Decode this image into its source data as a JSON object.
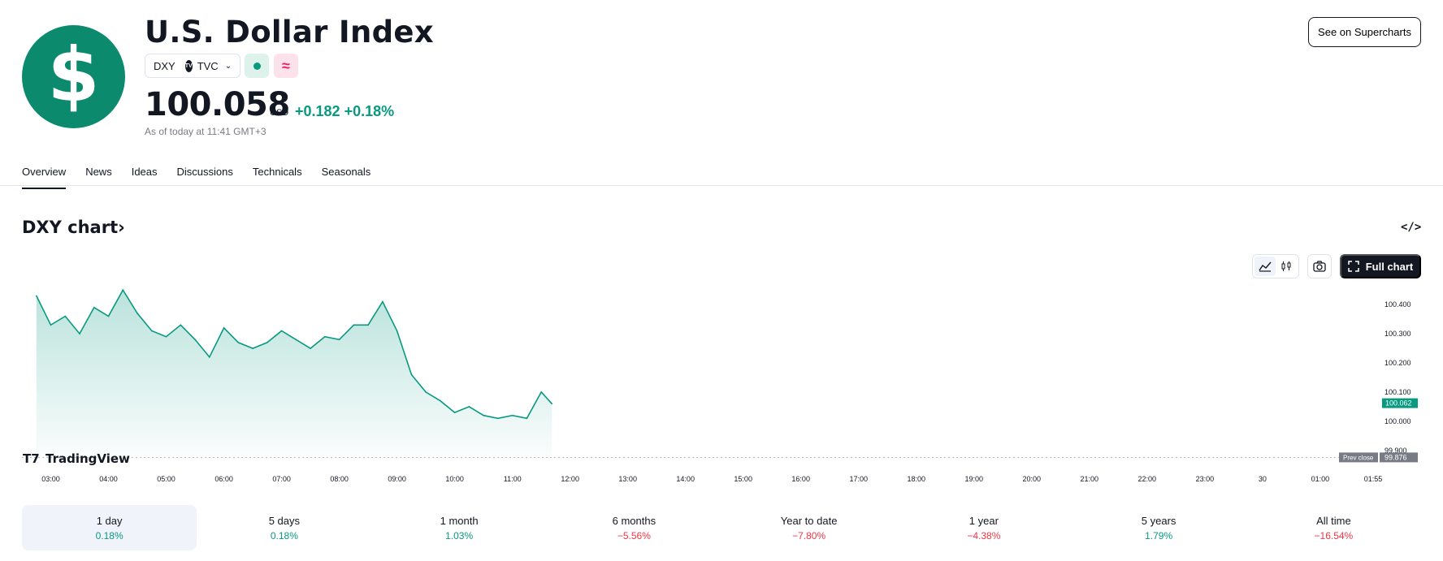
{
  "header": {
    "logo_symbol": "$",
    "title": "U.S. Dollar Index",
    "ticker": "DXY",
    "exchange": "TVC",
    "exchange_badge": "TV",
    "market_status_icon": "green-dot-icon",
    "data_delay_icon": "wave-icon",
    "price": "100.058",
    "currency": "USD",
    "change": "+0.182",
    "change_pct": "+0.18%",
    "as_of": "As of today at 11:41 GMT+3",
    "supercharts_label": "See on Supercharts"
  },
  "tabs": [
    "Overview",
    "News",
    "Ideas",
    "Discussions",
    "Technicals",
    "Seasonals"
  ],
  "active_tab": "Overview",
  "chart_section": {
    "title": "DXY chart",
    "title_arrow": "›",
    "embed_label": "</>",
    "full_chart_label": "Full chart",
    "brand": "TradingView"
  },
  "periods": [
    {
      "label": "1 day",
      "value": "0.18%",
      "dir": "pos"
    },
    {
      "label": "5 days",
      "value": "0.18%",
      "dir": "pos"
    },
    {
      "label": "1 month",
      "value": "1.03%",
      "dir": "pos"
    },
    {
      "label": "6 months",
      "value": "−5.56%",
      "dir": "neg"
    },
    {
      "label": "Year to date",
      "value": "−7.80%",
      "dir": "neg"
    },
    {
      "label": "1 year",
      "value": "−4.38%",
      "dir": "neg"
    },
    {
      "label": "5 years",
      "value": "1.79%",
      "dir": "pos"
    },
    {
      "label": "All time",
      "value": "−16.54%",
      "dir": "neg"
    }
  ],
  "colors": {
    "accent": "#089981",
    "negative": "#f23645",
    "logo_bg": "#0b8a6e",
    "text": "#131722"
  },
  "chart_data": {
    "type": "area",
    "x_ticks": [
      "03:00",
      "04:00",
      "05:00",
      "06:00",
      "07:00",
      "08:00",
      "09:00",
      "10:00",
      "11:00",
      "12:00",
      "13:00",
      "14:00",
      "15:00",
      "16:00",
      "17:00",
      "18:00",
      "19:00",
      "20:00",
      "21:00",
      "22:00",
      "23:00",
      "30",
      "01:00",
      "01:55"
    ],
    "y_ticks": [
      "100.400",
      "100.300",
      "100.200",
      "100.100",
      "100.000",
      "99.900"
    ],
    "ylim": [
      99.88,
      100.47
    ],
    "x": [
      "02:45",
      "03:00",
      "03:15",
      "03:30",
      "03:45",
      "04:00",
      "04:15",
      "04:30",
      "04:45",
      "05:00",
      "05:15",
      "05:30",
      "05:45",
      "06:00",
      "06:15",
      "06:30",
      "06:45",
      "07:00",
      "07:15",
      "07:30",
      "07:45",
      "08:00",
      "08:15",
      "08:30",
      "08:45",
      "09:00",
      "09:15",
      "09:30",
      "09:45",
      "10:00",
      "10:15",
      "10:30",
      "10:45",
      "11:00",
      "11:15",
      "11:30",
      "11:41"
    ],
    "series": [
      {
        "values": [
          100.43,
          100.33,
          100.36,
          100.3,
          100.39,
          100.36,
          100.45,
          100.37,
          100.31,
          100.29,
          100.33,
          100.28,
          100.22,
          100.32,
          100.27,
          100.25,
          100.27,
          100.31,
          100.28,
          100.25,
          100.29,
          100.28,
          100.33,
          100.33,
          100.41,
          100.31,
          100.16,
          100.1,
          100.07,
          100.03,
          100.05,
          100.02,
          100.01,
          100.02,
          100.01,
          100.1,
          100.06
        ]
      }
    ],
    "current_value_label": "100.062",
    "prev_close_label": "Prev close",
    "prev_close_value": "99.876",
    "prev_close": 99.876
  }
}
